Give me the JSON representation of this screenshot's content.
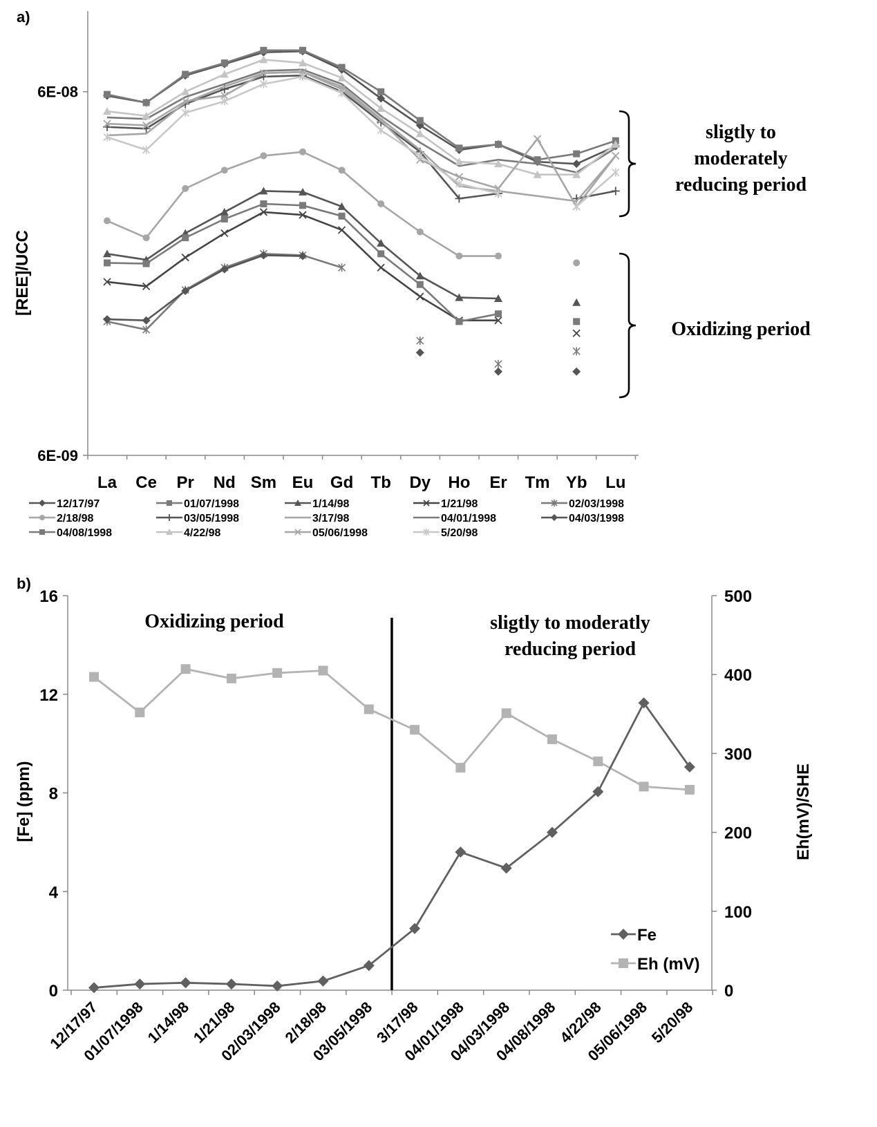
{
  "colors": {
    "dark": "#555555",
    "medium": "#7a7a7a",
    "light": "#a6a6a6",
    "lighter": "#c4c4c4",
    "axis": "#888888",
    "divider": "#000000"
  },
  "chart_data": [
    {
      "type": "line",
      "panel_label": "a)",
      "ylabel": "[REE]/UCC",
      "yscale": "log",
      "ylim": [
        6e-09,
        1e-07
      ],
      "y_tick_labels": [
        "6E-09",
        "6E-08"
      ],
      "categories": [
        "La",
        "Ce",
        "Pr",
        "Nd",
        "Sm",
        "Eu",
        "Gd",
        "Tb",
        "Dy",
        "Ho",
        "Er",
        "Tm",
        "Yb",
        "Lu"
      ],
      "annotations": [
        {
          "text": "sligtly to",
          "line": 1
        },
        {
          "text": "moderately",
          "line": 2
        },
        {
          "text": "reducing  period",
          "line": 3
        },
        {
          "text": "Oxidizing  period",
          "line": 4
        }
      ],
      "legend_position": "bottom",
      "series": [
        {
          "name": "12/17/97",
          "color": "#555555",
          "marker": "diamond",
          "values": [
            5.85e-08,
            5.6e-08,
            6.65e-08,
            7.15e-08,
            7.7e-08,
            7.75e-08,
            6.9e-08,
            5.75e-08,
            4.85e-08,
            4.15e-08,
            4.3e-08,
            3.85e-08,
            3.8e-08,
            4.25e-08
          ]
        },
        {
          "name": "01/07/1998",
          "color": "#7a7a7a",
          "marker": "square",
          "values": [
            5.9e-08,
            5.6e-08,
            6.7e-08,
            7.2e-08,
            7.8e-08,
            7.8e-08,
            7e-08,
            6e-08,
            5e-08,
            4.2e-08,
            4.3e-08,
            3.9e-08,
            4.05e-08,
            4.4e-08
          ]
        },
        {
          "name": "1/14/98",
          "color": "#555555",
          "marker": "triangle",
          "values": [
            2.15e-08,
            2.07e-08,
            2.45e-08,
            2.8e-08,
            3.2e-08,
            3.18e-08,
            2.9e-08,
            2.3e-08,
            1.87e-08,
            1.63e-08,
            1.62e-08,
            null,
            1.58e-08,
            null
          ]
        },
        {
          "name": "1/21/98",
          "color": "#444444",
          "marker": "x",
          "values": [
            1.8e-08,
            1.75e-08,
            2.1e-08,
            2.45e-08,
            2.8e-08,
            2.75e-08,
            2.5e-08,
            1.97e-08,
            1.64e-08,
            1.41e-08,
            1.41e-08,
            null,
            1.3e-08,
            null
          ]
        },
        {
          "name": "02/03/1998",
          "color": "#7a7a7a",
          "marker": "star",
          "values": [
            1.4e-08,
            1.33e-08,
            1.71e-08,
            1.97e-08,
            2.15e-08,
            2.13e-08,
            1.97e-08,
            null,
            1.24e-08,
            null,
            1.07e-08,
            null,
            1.16e-08,
            null
          ]
        },
        {
          "name": "2/18/98",
          "color": "#a6a6a6",
          "marker": "circle",
          "values": [
            2.65e-08,
            2.38e-08,
            3.25e-08,
            3.65e-08,
            4e-08,
            4.1e-08,
            3.65e-08,
            2.95e-08,
            2.47e-08,
            2.12e-08,
            2.12e-08,
            null,
            2.03e-08,
            null
          ]
        },
        {
          "name": "03/05/1998",
          "color": "#555555",
          "marker": "plus",
          "values": [
            4.8e-08,
            4.75e-08,
            5.55e-08,
            6.1e-08,
            6.6e-08,
            6.65e-08,
            6e-08,
            4.95e-08,
            4.1e-08,
            3.05e-08,
            3.15e-08,
            null,
            3.05e-08,
            3.2e-08
          ]
        },
        {
          "name": "3/17/98",
          "color": "#a6a6a6",
          "marker": "none",
          "values": [
            4.55e-08,
            4.6e-08,
            5.6e-08,
            6.2e-08,
            6.75e-08,
            6.8e-08,
            6.2e-08,
            5.05e-08,
            4.15e-08,
            3.3e-08,
            3.2e-08,
            3.1e-08,
            3e-08,
            4e-08
          ]
        },
        {
          "name": "04/01/1998",
          "color": "#7a7a7a",
          "marker": "none",
          "values": [
            5.1e-08,
            5.05e-08,
            5.8e-08,
            6.3e-08,
            6.85e-08,
            6.9e-08,
            6.3e-08,
            5.15e-08,
            4.35e-08,
            3.75e-08,
            3.9e-08,
            3.8e-08,
            3.6e-08,
            4.2e-08
          ]
        },
        {
          "name": "04/03/1998",
          "color": "#555555",
          "marker": "diamond",
          "values": [
            1.42e-08,
            1.41e-08,
            1.7e-08,
            1.95e-08,
            2.13e-08,
            2.12e-08,
            null,
            null,
            1.15e-08,
            null,
            1.02e-08,
            null,
            1.02e-08,
            null
          ]
        },
        {
          "name": "04/08/1998",
          "color": "#7a7a7a",
          "marker": "square",
          "values": [
            2.03e-08,
            2.02e-08,
            2.38e-08,
            2.68e-08,
            2.95e-08,
            2.92e-08,
            2.73e-08,
            2.15e-08,
            1.77e-08,
            1.4e-08,
            1.47e-08,
            null,
            1.4e-08,
            null
          ]
        },
        {
          "name": "4/22/98",
          "color": "#c4c4c4",
          "marker": "triangle",
          "values": [
            5.3e-08,
            5.15e-08,
            6e-08,
            6.7e-08,
            7.35e-08,
            7.2e-08,
            6.55e-08,
            5.4e-08,
            4.6e-08,
            3.85e-08,
            3.8e-08,
            3.55e-08,
            3.55e-08,
            4.3e-08
          ]
        },
        {
          "name": "05/06/1998",
          "color": "#a6a6a6",
          "marker": "x",
          "values": [
            4.9e-08,
            4.85e-08,
            5.65e-08,
            5.85e-08,
            6.75e-08,
            6.8e-08,
            6.1e-08,
            5e-08,
            3.9e-08,
            3.5e-08,
            3.25e-08,
            4.45e-08,
            2.9e-08,
            4e-08
          ]
        },
        {
          "name": "5/20/98",
          "color": "#c8c8c8",
          "marker": "star",
          "values": [
            4.5e-08,
            4.15e-08,
            5.25e-08,
            5.65e-08,
            6.3e-08,
            6.6e-08,
            5.95e-08,
            4.7e-08,
            4e-08,
            3.35e-08,
            3.15e-08,
            null,
            2.9e-08,
            3.6e-08
          ]
        }
      ]
    },
    {
      "type": "line",
      "panel_label": "b)",
      "ylabel": "[Fe] (ppm)",
      "y2label": "Eh(mV)/SHE",
      "ylim": [
        0,
        16
      ],
      "y_ticks": [
        0,
        4,
        8,
        12,
        16
      ],
      "y2lim": [
        0,
        500
      ],
      "y2_ticks": [
        0,
        100,
        200,
        300,
        400,
        500
      ],
      "categories": [
        "12/17/97",
        "01/07/1998",
        "1/14/98",
        "1/21/98",
        "02/03/1998",
        "2/18/98",
        "03/05/1998",
        "3/17/98",
        "04/01/1998",
        "04/03/1998",
        "04/08/1998",
        "4/22/98",
        "05/06/1998",
        "5/20/98"
      ],
      "divider_between": [
        6,
        7
      ],
      "annotations": [
        {
          "text": "Oxidizing  period",
          "line": 1
        },
        {
          "text": "sligtly to moderatly",
          "line": 2
        },
        {
          "text": "reducing period",
          "line": 3
        }
      ],
      "legend_position": "bottom-right",
      "series": [
        {
          "name": "Fe",
          "axis": "left",
          "color": "#606060",
          "marker": "diamond",
          "values": [
            0.1,
            0.25,
            0.3,
            0.25,
            0.17,
            0.37,
            1.0,
            2.5,
            5.6,
            4.95,
            6.4,
            8.05,
            11.65,
            9.05
          ]
        },
        {
          "name": "Eh (mV)",
          "axis": "right",
          "color": "#b3b3b3",
          "marker": "square",
          "values": [
            397,
            352,
            407,
            395,
            402,
            405,
            356,
            330,
            282,
            351,
            318,
            290,
            258,
            254
          ]
        }
      ]
    }
  ]
}
